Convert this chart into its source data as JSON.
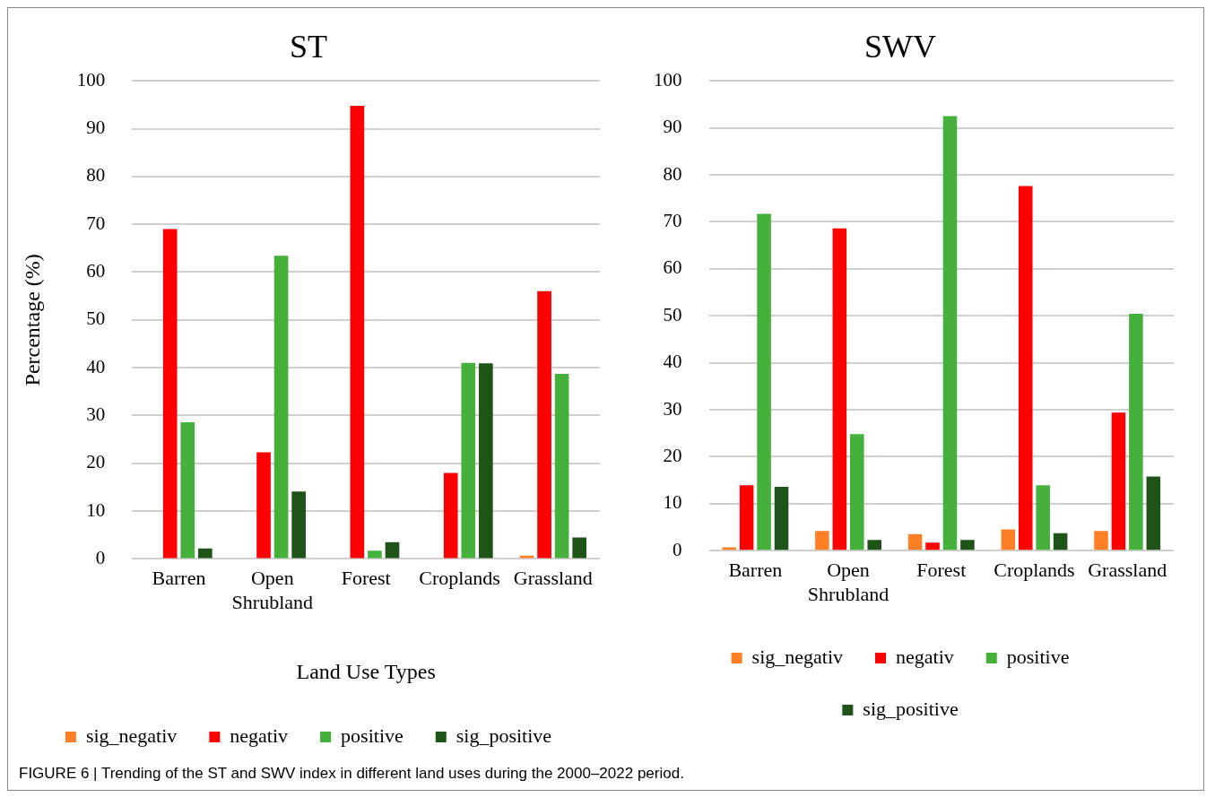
{
  "chart_data": [
    {
      "type": "bar",
      "title": "ST",
      "ylabel": "Percentage (%)",
      "xlabel": "Land Use Types",
      "categories": [
        "Barren",
        "Open Shrubland",
        "Forest",
        "Croplands",
        "Grassland"
      ],
      "ylim": [
        0,
        100
      ],
      "yticks": [
        0,
        10,
        20,
        30,
        40,
        50,
        60,
        70,
        80,
        90,
        100
      ],
      "grid": "y",
      "legend": "bottom",
      "series": [
        {
          "name": "sig_negativ",
          "color": "#ff7f27",
          "values": [
            0,
            0,
            0,
            0,
            0.7
          ]
        },
        {
          "name": "negativ",
          "color": "#ff0000",
          "values": [
            69,
            22.3,
            94.8,
            18,
            56
          ]
        },
        {
          "name": "positive",
          "color": "#46b03c",
          "values": [
            28.6,
            63.4,
            1.7,
            41,
            38.7
          ]
        },
        {
          "name": "sig_positive",
          "color": "#1e5418",
          "values": [
            2.2,
            14.1,
            3.5,
            40.9,
            4.5
          ]
        }
      ]
    },
    {
      "type": "bar",
      "title": "SWV",
      "categories": [
        "Barren",
        "Open Shrubland",
        "Forest",
        "Croplands",
        "Grassland"
      ],
      "ylim": [
        0,
        100
      ],
      "yticks": [
        0,
        10,
        20,
        30,
        40,
        50,
        60,
        70,
        80,
        90,
        100
      ],
      "grid": "y",
      "legend": "bottom",
      "annotations": [
        "FIGURE 6 | Trending of the ST and SWV index in different land uses during the 2000–2022 period."
      ],
      "series": [
        {
          "name": "sig_negativ",
          "color": "#ff7f27",
          "values": [
            0.7,
            4.2,
            3.5,
            4.5,
            4.2
          ]
        },
        {
          "name": "negativ",
          "color": "#ff0000",
          "values": [
            13.9,
            68.6,
            1.7,
            77.6,
            29.4
          ]
        },
        {
          "name": "positive",
          "color": "#46b03c",
          "values": [
            71.7,
            24.8,
            92.5,
            13.9,
            50.4
          ]
        },
        {
          "name": "sig_positive",
          "color": "#1e5418",
          "values": [
            13.6,
            2.3,
            2.3,
            3.7,
            15.8
          ]
        }
      ]
    }
  ]
}
